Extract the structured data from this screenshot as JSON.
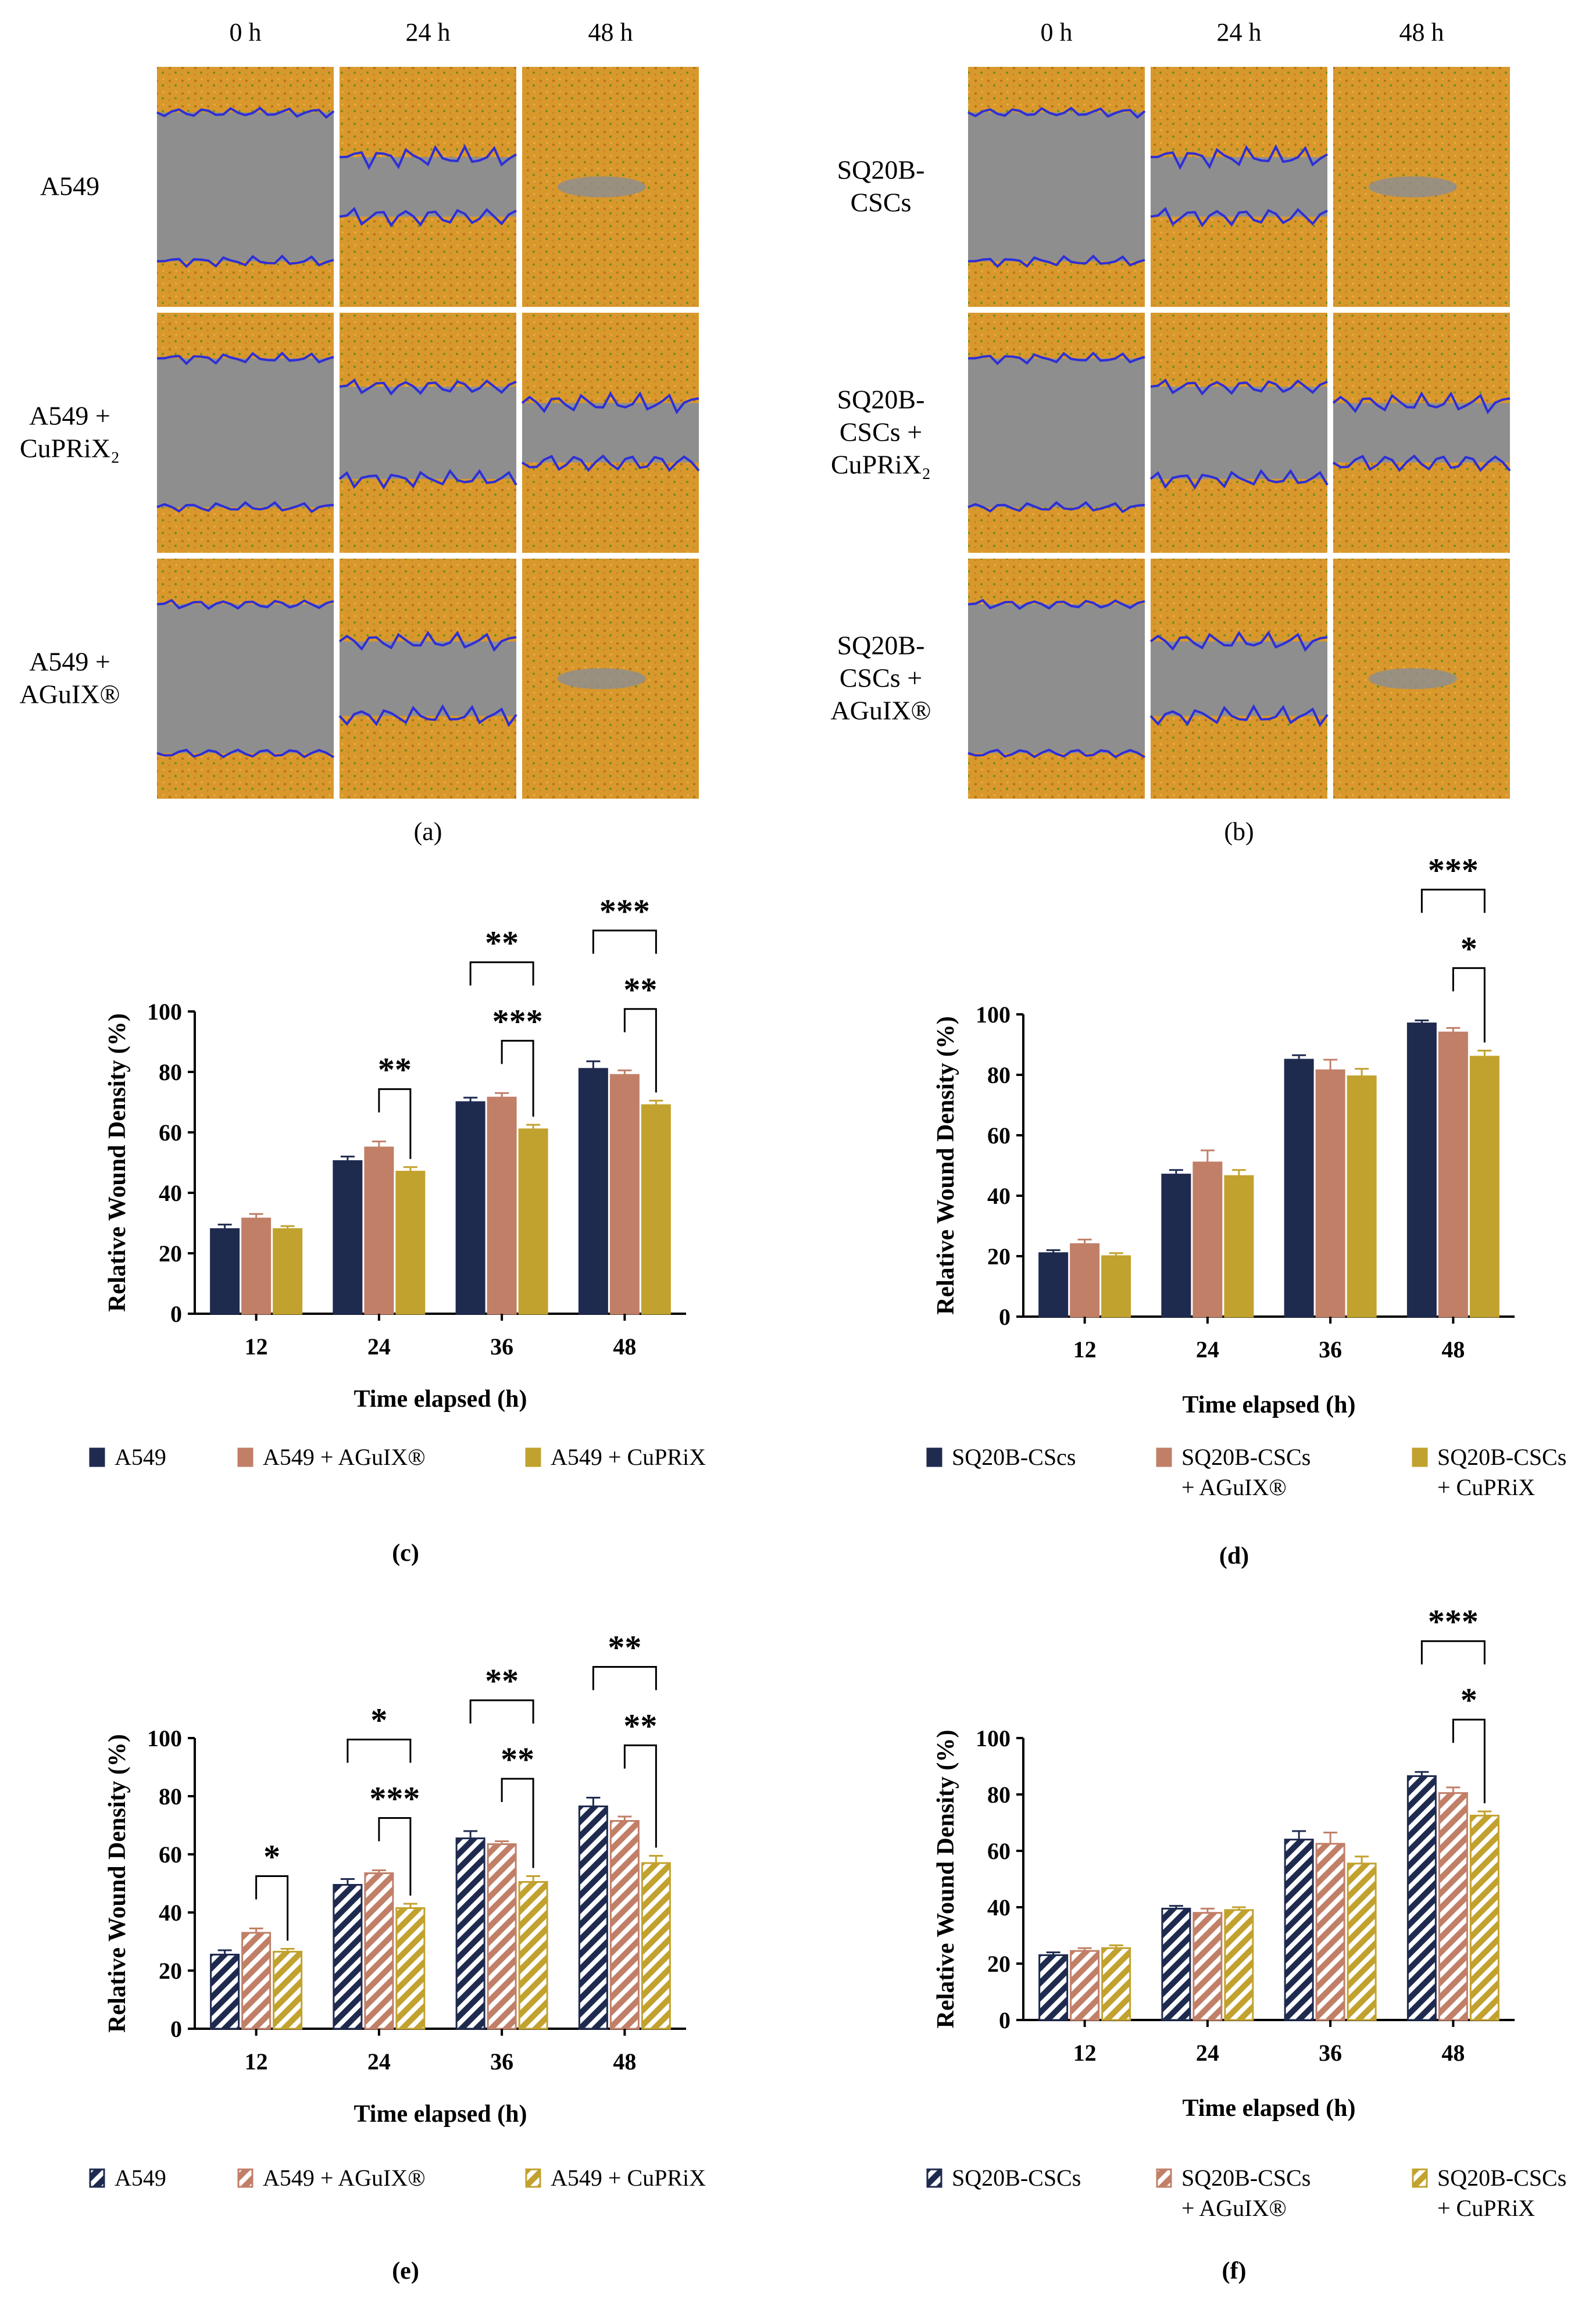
{
  "images": {
    "col_headers": [
      "0 h",
      "24 h",
      "48 h"
    ],
    "panel_a": {
      "letter": "(a)",
      "rows": [
        {
          "label": [
            "A549"
          ]
        },
        {
          "label": [
            "A549 +",
            "CuPRiX₂"
          ]
        },
        {
          "label": [
            "A549 +",
            "AGuIX®"
          ]
        }
      ]
    },
    "panel_b": {
      "letter": "(b)",
      "rows": [
        {
          "label": [
            "SQ20B-",
            "CSCs"
          ]
        },
        {
          "label": [
            "SQ20B-",
            "CSCs +",
            "CuPRiX₂"
          ]
        },
        {
          "label": [
            "SQ20B-",
            "CSCs +",
            "AGuIX®"
          ]
        }
      ]
    },
    "gap_fraction": {
      "rows": [
        [
          1.0,
          0.4,
          0.07
        ],
        [
          1.0,
          0.62,
          0.4
        ],
        [
          1.0,
          0.5,
          0.12
        ]
      ]
    },
    "colors": {
      "cells": "#d9982c",
      "wound": "#8e8e8e",
      "edge": "#2e2fd6",
      "cell_dot": "#6b8e23"
    }
  },
  "chart_data": [
    {
      "type": "bar",
      "panel": "(c)",
      "hatched": false,
      "xlabel": "Time elapsed (h)",
      "ylabel": "Relative Wound Density (%)",
      "ylim": [
        0,
        100
      ],
      "yticks": [
        "0",
        "20",
        "40",
        "60",
        "80",
        "100"
      ],
      "categories": [
        "12",
        "24",
        "36",
        "48"
      ],
      "series": [
        {
          "name": "A549",
          "values": [
            28,
            50.5,
            70,
            81
          ],
          "errors": [
            1.5,
            1.5,
            1.5,
            2.5
          ]
        },
        {
          "name": "A549 + AGuIX®",
          "values": [
            31.5,
            55,
            71.5,
            79
          ],
          "errors": [
            1.5,
            2,
            1.5,
            1.5
          ]
        },
        {
          "name": "A549 + CuPRiX",
          "values": [
            28,
            47,
            61,
            69
          ],
          "errors": [
            1,
            1.5,
            1.5,
            1.5
          ]
        }
      ],
      "legend": [
        [
          "A549"
        ],
        [
          "A549 + AGuIX®"
        ],
        [
          "A549 + CuPRiX"
        ]
      ],
      "significance": [
        {
          "cat": 1,
          "from": 1,
          "to": 2,
          "label": "**",
          "level": 0
        },
        {
          "cat": 2,
          "from": 0,
          "to": 2,
          "label": "**",
          "level": 1
        },
        {
          "cat": 2,
          "from": 1,
          "to": 2,
          "label": "***",
          "level": 0
        },
        {
          "cat": 3,
          "from": 0,
          "to": 2,
          "label": "***",
          "level": 1
        },
        {
          "cat": 3,
          "from": 1,
          "to": 2,
          "label": "**",
          "level": 0
        }
      ]
    },
    {
      "type": "bar",
      "panel": "(d)",
      "hatched": false,
      "xlabel": "Time elapsed (h)",
      "ylabel": "Relative Wound Density (%)",
      "ylim": [
        0,
        100
      ],
      "yticks": [
        "0",
        "20",
        "40",
        "60",
        "80",
        "100"
      ],
      "categories": [
        "12",
        "24",
        "36",
        "48"
      ],
      "series": [
        {
          "name": "SQ20B-CScs",
          "values": [
            21,
            47,
            85,
            97
          ],
          "errors": [
            1,
            1.5,
            1.5,
            1
          ]
        },
        {
          "name": "SQ20B-CSCs + AGuIX®",
          "values": [
            24,
            51,
            81.5,
            94
          ],
          "errors": [
            1.5,
            4,
            3.5,
            1.5
          ]
        },
        {
          "name": "SQ20B-CSCs + CuPRiX",
          "values": [
            20,
            46.5,
            79.5,
            86
          ],
          "errors": [
            1,
            2,
            2.5,
            2
          ]
        }
      ],
      "legend": [
        [
          "SQ20B-CScs"
        ],
        [
          "SQ20B-CSCs",
          "+ AGuIX®"
        ],
        [
          "SQ20B-CSCs",
          "+ CuPRiX"
        ]
      ],
      "significance": [
        {
          "cat": 3,
          "from": 0,
          "to": 2,
          "label": "***",
          "level": 1
        },
        {
          "cat": 3,
          "from": 1,
          "to": 2,
          "label": "*",
          "level": 0
        }
      ]
    },
    {
      "type": "bar",
      "panel": "(e)",
      "hatched": true,
      "xlabel": "Time elapsed (h)",
      "ylabel": "Relative Wound Density (%)",
      "ylim": [
        0,
        100
      ],
      "yticks": [
        "0",
        "20",
        "40",
        "60",
        "80",
        "100"
      ],
      "categories": [
        "12",
        "24",
        "36",
        "48"
      ],
      "series": [
        {
          "name": "A549",
          "values": [
            25.5,
            49.5,
            65.5,
            76.5
          ],
          "errors": [
            1.5,
            2,
            2.5,
            3
          ]
        },
        {
          "name": "A549 + AGuIX®",
          "values": [
            33,
            53.5,
            63.5,
            71.5
          ],
          "errors": [
            1.5,
            1,
            1,
            1.5
          ]
        },
        {
          "name": "A549 + CuPRiX",
          "values": [
            26.5,
            41.5,
            50.5,
            57
          ],
          "errors": [
            1,
            1.5,
            2,
            2.5
          ]
        }
      ],
      "legend": [
        [
          "A549"
        ],
        [
          "A549 + AGuIX®"
        ],
        [
          "A549 + CuPRiX"
        ]
      ],
      "significance": [
        {
          "cat": 0,
          "from": 1,
          "to": 2,
          "label": "*",
          "level": 0
        },
        {
          "cat": 1,
          "from": 0,
          "to": 2,
          "label": "*",
          "level": 1
        },
        {
          "cat": 1,
          "from": 1,
          "to": 2,
          "label": "***",
          "level": 0
        },
        {
          "cat": 2,
          "from": 0,
          "to": 2,
          "label": "**",
          "level": 1
        },
        {
          "cat": 2,
          "from": 1,
          "to": 2,
          "label": "**",
          "level": 0
        },
        {
          "cat": 3,
          "from": 0,
          "to": 2,
          "label": "**",
          "level": 1
        },
        {
          "cat": 3,
          "from": 1,
          "to": 2,
          "label": "**",
          "level": 0
        }
      ]
    },
    {
      "type": "bar",
      "panel": "(f)",
      "hatched": true,
      "xlabel": "Time elapsed (h)",
      "ylabel": "Relative Wound Density (%)",
      "ylim": [
        0,
        100
      ],
      "yticks": [
        "0",
        "20",
        "40",
        "60",
        "80",
        "100"
      ],
      "categories": [
        "12",
        "24",
        "36",
        "48"
      ],
      "series": [
        {
          "name": "SQ20B-CSCs",
          "values": [
            23,
            39.5,
            64,
            86.5
          ],
          "errors": [
            1,
            1,
            3,
            1.5
          ]
        },
        {
          "name": "SQ20B-CSCs + AGuIX®",
          "values": [
            24.5,
            38,
            62.5,
            80.5
          ],
          "errors": [
            1,
            1.5,
            4,
            2
          ]
        },
        {
          "name": "SQ20B-CSCs + CuPRiX",
          "values": [
            25.5,
            39,
            55.5,
            72.5
          ],
          "errors": [
            1,
            1,
            2.5,
            1.5
          ]
        }
      ],
      "legend": [
        [
          "SQ20B-CSCs"
        ],
        [
          "SQ20B-CSCs",
          "+ AGuIX®"
        ],
        [
          "SQ20B-CSCs",
          "+ CuPRiX"
        ]
      ],
      "significance": [
        {
          "cat": 3,
          "from": 0,
          "to": 2,
          "label": "***",
          "level": 1
        },
        {
          "cat": 3,
          "from": 1,
          "to": 2,
          "label": "*",
          "level": 0
        }
      ]
    }
  ],
  "series_colors": [
    "#1f2a4f",
    "#c17f68",
    "#c2a22e"
  ]
}
